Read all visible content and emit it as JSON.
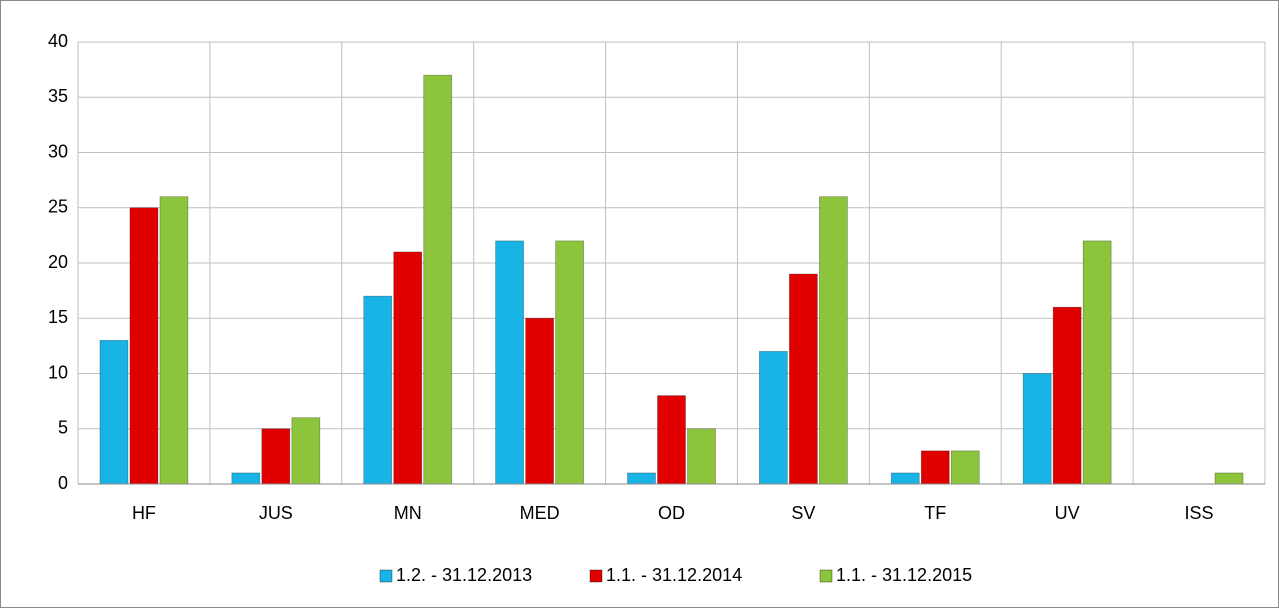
{
  "chart_data": {
    "type": "bar",
    "categories": [
      "HF",
      "JUS",
      "MN",
      "MED",
      "OD",
      "SV",
      "TF",
      "UV",
      "ISS"
    ],
    "series": [
      {
        "name": "1.2. - 31.12.2013",
        "color": "#19b4e6",
        "values": [
          13,
          1,
          17,
          22,
          1,
          12,
          1,
          10,
          0
        ]
      },
      {
        "name": "1.1. - 31.12.2014",
        "color": "#e00000",
        "values": [
          25,
          5,
          21,
          15,
          8,
          19,
          3,
          16,
          0
        ]
      },
      {
        "name": "1.1. - 31.12.2015",
        "color": "#8cc43c",
        "values": [
          26,
          6,
          37,
          22,
          5,
          26,
          3,
          22,
          1
        ]
      }
    ],
    "ylim": [
      0,
      40
    ],
    "yticks": [
      0,
      5,
      10,
      15,
      20,
      25,
      30,
      35,
      40
    ],
    "grid": true,
    "legend": "bottom"
  }
}
